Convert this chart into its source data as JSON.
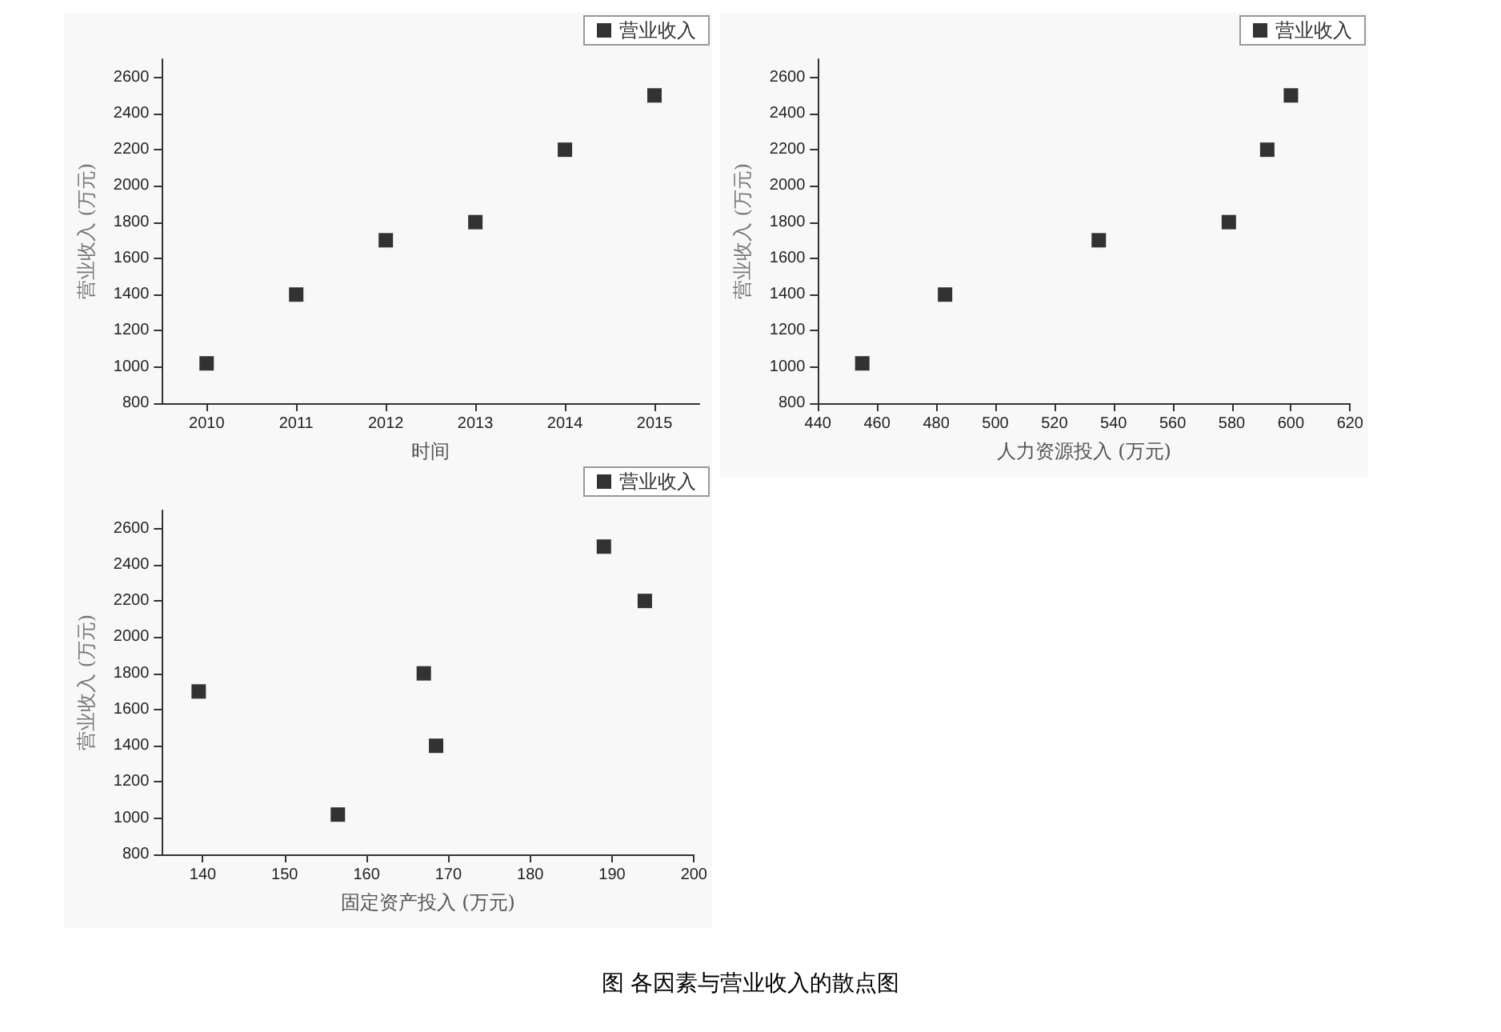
{
  "chart_data": [
    {
      "type": "scatter",
      "series": [
        {
          "name": "营业收入",
          "color": "#000000",
          "values": [
            1020,
            1400,
            1700,
            1800,
            2200,
            2500
          ]
        }
      ],
      "x": [
        2010,
        2011,
        2012,
        2013,
        2014,
        2015
      ],
      "xlabel": "时间",
      "ylabel": "营业收入 (万元)",
      "xlim": [
        2009.5,
        2015.5
      ],
      "xticks": [
        2010,
        2011,
        2012,
        2013,
        2014,
        2015
      ],
      "ylim": [
        800,
        2700
      ],
      "yticks": [
        800,
        1000,
        1200,
        1400,
        1600,
        1800,
        2000,
        2200,
        2400,
        2600
      ],
      "marker": "square",
      "legend": "top right",
      "annotations": [
        "图  各因素与营业收入的散点图"
      ]
    },
    {
      "type": "scatter",
      "series": [
        {
          "name": "营业收入",
          "color": "#000000",
          "values": [
            1020,
            1400,
            1700,
            1800,
            2200,
            2500
          ]
        }
      ],
      "x": [
        455,
        483,
        535,
        579,
        592,
        600
      ],
      "xlabel": "人力资源投入 (万元)",
      "ylabel": "营业收入 (万元)",
      "xlim": [
        440,
        620
      ],
      "xticks": [
        440,
        460,
        480,
        500,
        520,
        540,
        560,
        580,
        600,
        620
      ],
      "ylim": [
        800,
        2700
      ],
      "yticks": [
        800,
        1000,
        1200,
        1400,
        1600,
        1800,
        2000,
        2200,
        2400,
        2600
      ],
      "marker": "square",
      "legend": "top right"
    },
    {
      "type": "scatter",
      "series": [
        {
          "name": "营业收入",
          "color": "#000000",
          "values": [
            1020,
            1400,
            1700,
            1800,
            2200,
            2500
          ]
        }
      ],
      "x": [
        156.5,
        168.5,
        139.5,
        167,
        194,
        189
      ],
      "xlabel": "固定资产投入 (万元)",
      "ylabel": "营业收入 (万元)",
      "xlim": [
        135,
        200
      ],
      "xticks": [
        140,
        150,
        160,
        170,
        180,
        190,
        200
      ],
      "ylim": [
        800,
        2700
      ],
      "yticks": [
        800,
        1000,
        1200,
        1400,
        1600,
        1800,
        2000,
        2200,
        2400,
        2600
      ],
      "marker": "square",
      "legend": "top right"
    }
  ]
}
